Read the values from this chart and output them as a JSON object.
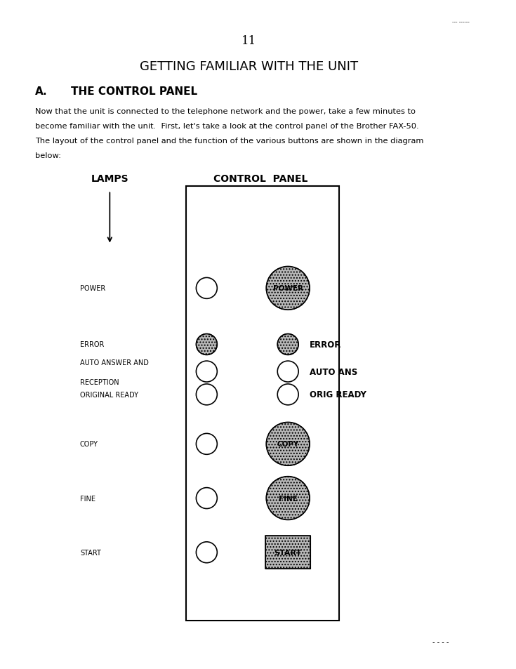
{
  "page_number": "11",
  "title": "GETTING FAMILIAR WITH THE UNIT",
  "section": "A.",
  "section_title": "THE CONTROL PANEL",
  "body_text": "Now that the unit is connected to the telephone network and the power, take a few minutes to\nbecome familiar with the unit.  First, let's take a look at the control panel of the Brother FAX-50.\nThe layout of the control panel and the function of the various buttons are shown in the diagram\nbelow:",
  "lamps_label": "LAMPS",
  "control_panel_label": "CONTROL  PANEL",
  "bg_color": "#ffffff",
  "buttons": [
    {
      "name": "POWER",
      "label": "POWER",
      "shape": "circle_big",
      "filled": true,
      "y": 5.45,
      "lamp_label": "POWER",
      "lamp_label_lines": 1
    },
    {
      "name": "ERROR",
      "label": "ERROR",
      "shape": "circle_sm",
      "filled": true,
      "y": 4.62,
      "lamp_label": "ERROR",
      "lamp_label_lines": 1
    },
    {
      "name": "AUTOANS",
      "label": "AUTO ANS",
      "shape": "circle_sm",
      "filled": false,
      "y": 4.22,
      "lamp_label": "AUTO ANSWER AND\nRECEPTION",
      "lamp_label_lines": 2
    },
    {
      "name": "ORIGREADY",
      "label": "ORIG READY",
      "shape": "circle_sm",
      "filled": false,
      "y": 3.88,
      "lamp_label": "ORIGINAL READY",
      "lamp_label_lines": 1
    },
    {
      "name": "COPY",
      "label": "COPY",
      "shape": "circle_big",
      "filled": true,
      "y": 3.15,
      "lamp_label": "COPY",
      "lamp_label_lines": 1
    },
    {
      "name": "FINE",
      "label": "FINE",
      "shape": "circle_big",
      "filled": true,
      "y": 2.35,
      "lamp_label": "FINE",
      "lamp_label_lines": 1
    },
    {
      "name": "START",
      "label": "START",
      "shape": "rect",
      "filled": true,
      "y": 1.55,
      "lamp_label": "START",
      "lamp_label_lines": 1
    }
  ],
  "footer_dots": "- - - -",
  "top_marks": "--- ------"
}
